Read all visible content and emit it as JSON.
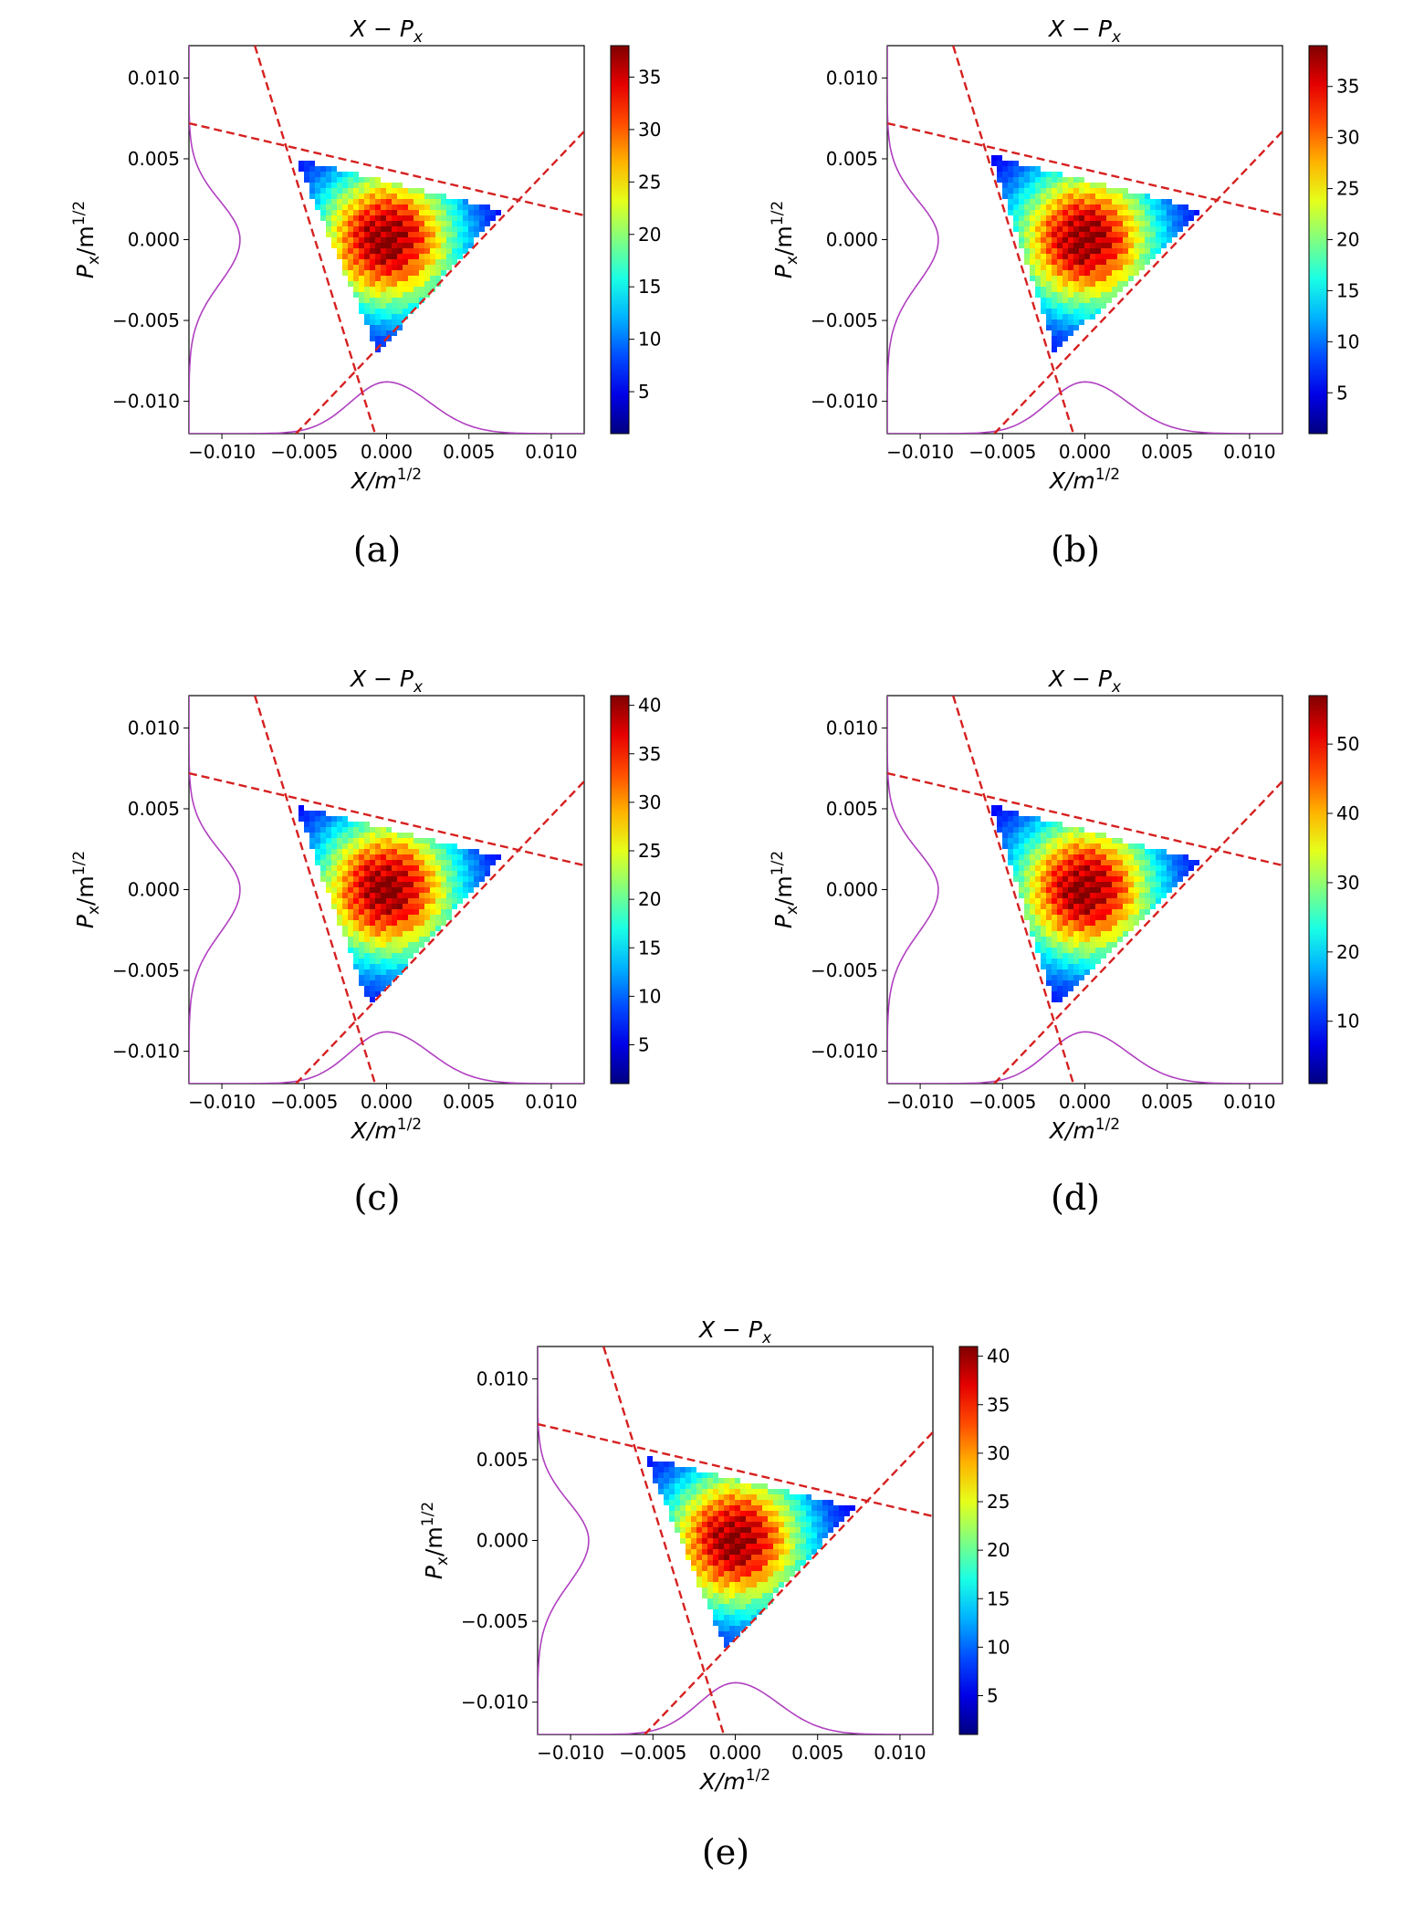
{
  "figure": {
    "colors": {
      "boundary_lines": "#d62020",
      "marginals": "#b040c0",
      "colormap": "jet"
    },
    "common": {
      "x_tick_labels": [
        "−0.010",
        "−0.005",
        "0.000",
        "0.005",
        "0.010"
      ],
      "y_tick_labels": [
        "0.010",
        "0.005",
        "0.000",
        "−0.005",
        "−0.010"
      ]
    }
  },
  "chart_data": [
    {
      "type": "heatmap",
      "panel": "(a)",
      "title": "X − P",
      "title_sub": "x",
      "xlabel": "X/m",
      "xlabel_sup": "1/2",
      "ylabel": "P",
      "ylabel_sub": "x",
      "ylabel_tail": "/m",
      "ylabel_sup": "1/2",
      "xlim": [
        -0.012,
        0.012
      ],
      "ylim": [
        -0.012,
        0.012
      ],
      "x_ticks": [
        -0.01,
        -0.005,
        0.0,
        0.005,
        0.01
      ],
      "y_ticks": [
        -0.01,
        -0.005,
        0.0,
        0.005,
        0.01
      ],
      "colorbar": {
        "min": 1,
        "max": 38,
        "ticks": [
          5,
          10,
          15,
          20,
          25,
          30,
          35
        ]
      },
      "triangle_vertices": [
        [
          -0.0055,
          0.005
        ],
        [
          0.007,
          0.0018
        ],
        [
          -0.0005,
          -0.007
        ]
      ],
      "peak_center": [
        0.0,
        0.0
      ],
      "boundary_lines": [
        {
          "x1": -0.008,
          "y1": 0.012,
          "x2": -0.0007,
          "y2": -0.012
        },
        {
          "x1": -0.012,
          "y1": 0.0072,
          "x2": 0.012,
          "y2": 0.0015
        },
        {
          "x1": -0.0055,
          "y1": -0.012,
          "x2": 0.012,
          "y2": 0.0067
        }
      ],
      "marginal_x_peak": 0.0,
      "marginal_y_peak": 0.0
    },
    {
      "type": "heatmap",
      "panel": "(b)",
      "title": "X − P",
      "title_sub": "x",
      "xlabel": "X/m",
      "xlabel_sup": "1/2",
      "ylabel": "P",
      "ylabel_sub": "x",
      "ylabel_tail": "/m",
      "ylabel_sup": "1/2",
      "xlim": [
        -0.012,
        0.012
      ],
      "ylim": [
        -0.012,
        0.012
      ],
      "x_ticks": [
        -0.01,
        -0.005,
        0.0,
        0.005,
        0.01
      ],
      "y_ticks": [
        -0.01,
        -0.005,
        0.0,
        0.005,
        0.01
      ],
      "colorbar": {
        "min": 1,
        "max": 39,
        "ticks": [
          5,
          10,
          15,
          20,
          25,
          30,
          35
        ]
      },
      "triangle_vertices": [
        [
          -0.0057,
          0.0052
        ],
        [
          0.0072,
          0.0018
        ],
        [
          -0.0018,
          -0.007
        ]
      ],
      "peak_center": [
        0.0,
        0.0
      ],
      "boundary_lines": [
        {
          "x1": -0.008,
          "y1": 0.012,
          "x2": -0.0007,
          "y2": -0.012
        },
        {
          "x1": -0.012,
          "y1": 0.0072,
          "x2": 0.012,
          "y2": 0.0015
        },
        {
          "x1": -0.0055,
          "y1": -0.012,
          "x2": 0.012,
          "y2": 0.0067
        }
      ],
      "marginal_x_peak": 0.0,
      "marginal_y_peak": 0.0
    },
    {
      "type": "heatmap",
      "panel": "(c)",
      "title": "X − P",
      "title_sub": "x",
      "xlabel": "X/m",
      "xlabel_sup": "1/2",
      "ylabel": "P",
      "ylabel_sub": "x",
      "ylabel_tail": "/m",
      "ylabel_sup": "1/2",
      "xlim": [
        -0.012,
        0.012
      ],
      "ylim": [
        -0.012,
        0.012
      ],
      "x_ticks": [
        -0.01,
        -0.005,
        0.0,
        0.005,
        0.01
      ],
      "y_ticks": [
        -0.01,
        -0.005,
        0.0,
        0.005,
        0.01
      ],
      "colorbar": {
        "min": 1,
        "max": 41,
        "ticks": [
          5,
          10,
          15,
          20,
          25,
          30,
          35,
          40
        ]
      },
      "triangle_vertices": [
        [
          -0.0055,
          0.0052
        ],
        [
          0.007,
          0.002
        ],
        [
          -0.001,
          -0.0073
        ]
      ],
      "peak_center": [
        0.0,
        0.0
      ],
      "boundary_lines": [
        {
          "x1": -0.008,
          "y1": 0.012,
          "x2": -0.0007,
          "y2": -0.012
        },
        {
          "x1": -0.012,
          "y1": 0.0072,
          "x2": 0.012,
          "y2": 0.0015
        },
        {
          "x1": -0.0055,
          "y1": -0.012,
          "x2": 0.012,
          "y2": 0.0067
        }
      ],
      "marginal_x_peak": 0.0,
      "marginal_y_peak": 0.0
    },
    {
      "type": "heatmap",
      "panel": "(d)",
      "title": "X − P",
      "title_sub": "x",
      "xlabel": "X/m",
      "xlabel_sup": "1/2",
      "ylabel": "P",
      "ylabel_sub": "x",
      "ylabel_tail": "/m",
      "ylabel_sup": "1/2",
      "xlim": [
        -0.012,
        0.012
      ],
      "ylim": [
        -0.012,
        0.012
      ],
      "x_ticks": [
        -0.01,
        -0.005,
        0.0,
        0.005,
        0.01
      ],
      "y_ticks": [
        -0.01,
        -0.005,
        0.0,
        0.005,
        0.01
      ],
      "colorbar": {
        "min": 1,
        "max": 57,
        "ticks": [
          10,
          20,
          30,
          40,
          50
        ]
      },
      "triangle_vertices": [
        [
          -0.0057,
          0.0052
        ],
        [
          0.007,
          0.0018
        ],
        [
          -0.0018,
          -0.0072
        ]
      ],
      "peak_center": [
        0.0,
        0.0
      ],
      "boundary_lines": [
        {
          "x1": -0.008,
          "y1": 0.012,
          "x2": -0.0007,
          "y2": -0.012
        },
        {
          "x1": -0.012,
          "y1": 0.0072,
          "x2": 0.012,
          "y2": 0.0015
        },
        {
          "x1": -0.0055,
          "y1": -0.012,
          "x2": 0.012,
          "y2": 0.0067
        }
      ],
      "marginal_x_peak": 0.0,
      "marginal_y_peak": 0.0
    },
    {
      "type": "heatmap",
      "panel": "(e)",
      "title": "X − P",
      "title_sub": "x",
      "xlabel": "X/m",
      "xlabel_sup": "1/2",
      "ylabel": "P",
      "ylabel_sub": "x",
      "ylabel_tail": "/m",
      "ylabel_sup": "1/2",
      "xlim": [
        -0.012,
        0.012
      ],
      "ylim": [
        -0.012,
        0.012
      ],
      "x_ticks": [
        -0.01,
        -0.005,
        0.0,
        0.005,
        0.01
      ],
      "y_ticks": [
        -0.01,
        -0.005,
        0.0,
        0.005,
        0.01
      ],
      "colorbar": {
        "min": 1,
        "max": 41,
        "ticks": [
          5,
          10,
          15,
          20,
          25,
          30,
          35,
          40
        ]
      },
      "triangle_vertices": [
        [
          -0.0055,
          0.0052
        ],
        [
          0.0072,
          0.002
        ],
        [
          -0.0005,
          -0.0068
        ]
      ],
      "peak_center": [
        0.0,
        0.0
      ],
      "boundary_lines": [
        {
          "x1": -0.008,
          "y1": 0.012,
          "x2": -0.0007,
          "y2": -0.012
        },
        {
          "x1": -0.012,
          "y1": 0.0072,
          "x2": 0.012,
          "y2": 0.0015
        },
        {
          "x1": -0.0055,
          "y1": -0.012,
          "x2": 0.012,
          "y2": 0.0067
        }
      ],
      "marginal_x_peak": 0.0,
      "marginal_y_peak": 0.0
    }
  ]
}
